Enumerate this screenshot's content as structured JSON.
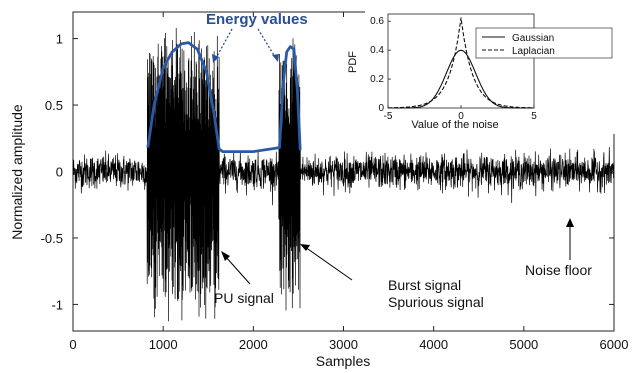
{
  "chart_data": {
    "type": "line",
    "xlabel": "Samples",
    "ylabel": "Normalized amplitude",
    "xlim": [
      0,
      6000
    ],
    "ylim": [
      -1.2,
      1.2
    ],
    "x_ticks": [
      "0",
      "1000",
      "2000",
      "3000",
      "4000",
      "5000",
      "6000"
    ],
    "y_ticks": [
      "1",
      "0.5",
      "0",
      "-0.5",
      "-1"
    ],
    "grid": false,
    "series": [
      {
        "role": "signal",
        "color": "#000000",
        "segments": [
          {
            "x_range": [
              0,
              820
            ],
            "kind": "noise",
            "amplitude": 0.15
          },
          {
            "x_range": [
              820,
              1620
            ],
            "kind": "PU burst",
            "amplitude": 1.0
          },
          {
            "x_range": [
              1620,
              2280
            ],
            "kind": "noise",
            "amplitude": 0.15
          },
          {
            "x_range": [
              2280,
              2520
            ],
            "kind": "burst",
            "amplitude": 0.95
          },
          {
            "x_range": [
              2520,
              6000
            ],
            "kind": "noise",
            "amplitude": 0.15
          }
        ]
      },
      {
        "role": "energy",
        "color": "#2a5aa6",
        "x": [
          830,
          900,
          1000,
          1100,
          1200,
          1280,
          1380,
          1480,
          1560,
          1620,
          1660,
          2000,
          2290,
          2330,
          2370,
          2410,
          2450,
          2490,
          2520
        ],
        "y": [
          0.18,
          0.5,
          0.78,
          0.9,
          0.96,
          0.97,
          0.92,
          0.75,
          0.45,
          0.17,
          0.15,
          0.15,
          0.18,
          0.65,
          0.9,
          0.94,
          0.92,
          0.6,
          0.16
        ]
      }
    ],
    "annotations": {
      "energy_title": "Energy values",
      "pu_signal": "PU signal",
      "burst_line1": "Burst signal",
      "burst_line2": "Spurious signal",
      "noise_floor": "Noise floor"
    },
    "inset": {
      "type": "line",
      "ylabel": "PDF",
      "xlabel": "Value of the noise",
      "xlim": [
        -5,
        5
      ],
      "ylim": [
        0,
        0.65
      ],
      "x_ticks": [
        "-5",
        "0",
        "5"
      ],
      "y_ticks": [
        "0",
        "0.2",
        "0.4",
        "0.6"
      ],
      "legend_placement": "top-right",
      "series": [
        {
          "name": "Gaussian",
          "style": "solid",
          "sigma": 1.0
        },
        {
          "name": "Laplacian",
          "style": "dashed",
          "scale_b": 0.8
        }
      ]
    },
    "colors": {
      "energy": "#2a5aa6",
      "energy_title": "#2a4f95",
      "signal": "#000000"
    }
  }
}
